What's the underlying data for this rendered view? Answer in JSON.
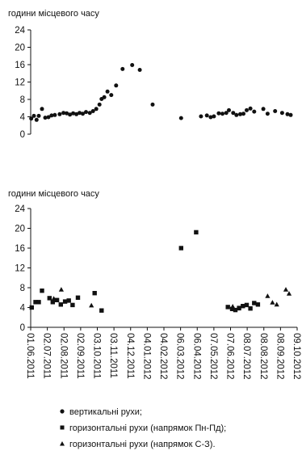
{
  "chart_data": [
    {
      "type": "scatter",
      "ylabel": "години місцевого часу",
      "ylim": [
        0,
        24
      ],
      "yticks": [
        0,
        4,
        8,
        12,
        16,
        20,
        24
      ],
      "grid": false,
      "series": [
        {
          "name": "вертикальні рухи;",
          "marker": "circle",
          "points": [
            [
              "2011-06-02",
              3.6
            ],
            [
              "2011-06-07",
              4.2
            ],
            [
              "2011-06-12",
              3.3
            ],
            [
              "2011-06-16",
              4.2
            ],
            [
              "2011-06-22",
              5.8
            ],
            [
              "2011-06-28",
              3.8
            ],
            [
              "2011-07-04",
              3.9
            ],
            [
              "2011-07-10",
              4.3
            ],
            [
              "2011-07-16",
              4.4
            ],
            [
              "2011-07-25",
              4.6
            ],
            [
              "2011-08-01",
              4.9
            ],
            [
              "2011-08-07",
              4.8
            ],
            [
              "2011-08-13",
              4.5
            ],
            [
              "2011-08-19",
              4.8
            ],
            [
              "2011-08-25",
              4.6
            ],
            [
              "2011-08-31",
              4.9
            ],
            [
              "2011-09-06",
              4.7
            ],
            [
              "2011-09-12",
              5.1
            ],
            [
              "2011-09-19",
              4.9
            ],
            [
              "2011-09-25",
              5.3
            ],
            [
              "2011-10-01",
              5.8
            ],
            [
              "2011-10-07",
              6.8
            ],
            [
              "2011-10-11",
              8.1
            ],
            [
              "2011-10-16",
              8.5
            ],
            [
              "2011-10-22",
              9.8
            ],
            [
              "2011-10-29",
              9.0
            ],
            [
              "2011-11-07",
              11.2
            ],
            [
              "2011-11-19",
              15.0
            ],
            [
              "2011-12-07",
              15.9
            ],
            [
              "2011-12-21",
              14.8
            ],
            [
              "2012-01-14",
              6.8
            ],
            [
              "2012-03-07",
              3.7
            ],
            [
              "2012-04-13",
              4.1
            ],
            [
              "2012-04-24",
              4.3
            ],
            [
              "2012-05-01",
              3.9
            ],
            [
              "2012-05-07",
              4.1
            ],
            [
              "2012-05-16",
              4.8
            ],
            [
              "2012-05-23",
              4.7
            ],
            [
              "2012-05-30",
              4.9
            ],
            [
              "2012-06-04",
              5.5
            ],
            [
              "2012-06-12",
              4.9
            ],
            [
              "2012-06-18",
              4.4
            ],
            [
              "2012-06-25",
              4.6
            ],
            [
              "2012-07-01",
              4.7
            ],
            [
              "2012-07-07",
              5.5
            ],
            [
              "2012-07-14",
              5.9
            ],
            [
              "2012-07-21",
              5.2
            ],
            [
              "2012-08-07",
              5.8
            ],
            [
              "2012-08-15",
              4.7
            ],
            [
              "2012-08-29",
              5.3
            ],
            [
              "2012-09-11",
              4.9
            ],
            [
              "2012-09-21",
              4.6
            ],
            [
              "2012-09-27",
              4.4
            ]
          ]
        }
      ]
    },
    {
      "type": "scatter",
      "ylabel": "години місцевого часу",
      "ylim": [
        0,
        24
      ],
      "yticks": [
        0,
        4,
        8,
        12,
        16,
        20,
        24
      ],
      "grid": false,
      "x_tick_labels": [
        "01.06.2011",
        "02.07.2011",
        "02.08.2011",
        "02.09.2011",
        "03.10.2011",
        "03.11.2011",
        "04.12.2011",
        "04.01.2012",
        "04.02.2012",
        "06.03.2012",
        "06.04.2012",
        "07.05.2012",
        "07.06.2012",
        "08.07.2012",
        "08.08.2012",
        "08.09.2012",
        "09.10.2012"
      ],
      "series": [
        {
          "name": "горизонтальні рухи (напрямок Пн-Пд);",
          "marker": "square",
          "points": [
            [
              "2011-06-03",
              4.0
            ],
            [
              "2011-06-10",
              5.1
            ],
            [
              "2011-06-16",
              5.1
            ],
            [
              "2011-06-22",
              7.4
            ],
            [
              "2011-07-06",
              5.9
            ],
            [
              "2011-07-12",
              5.1
            ],
            [
              "2011-07-20",
              5.5
            ],
            [
              "2011-07-27",
              4.6
            ],
            [
              "2011-08-04",
              5.2
            ],
            [
              "2011-08-11",
              5.4
            ],
            [
              "2011-08-18",
              4.5
            ],
            [
              "2011-08-28",
              6.0
            ],
            [
              "2011-09-28",
              6.9
            ],
            [
              "2011-10-11",
              3.4
            ],
            [
              "2012-03-07",
              16.0
            ],
            [
              "2012-04-04",
              19.2
            ],
            [
              "2012-06-02",
              4.1
            ],
            [
              "2012-06-10",
              3.7
            ],
            [
              "2012-06-16",
              3.5
            ],
            [
              "2012-06-23",
              3.9
            ],
            [
              "2012-06-30",
              4.3
            ],
            [
              "2012-07-07",
              4.5
            ],
            [
              "2012-07-14",
              3.8
            ],
            [
              "2012-07-21",
              4.9
            ],
            [
              "2012-07-28",
              4.6
            ]
          ]
        },
        {
          "name": "горизонтальні рухи (напрямок С-З).",
          "marker": "triangle",
          "points": [
            [
              "2011-07-14",
              5.8
            ],
            [
              "2011-07-28",
              7.6
            ],
            [
              "2011-09-22",
              4.4
            ],
            [
              "2012-06-11",
              4.2
            ],
            [
              "2012-06-22",
              3.8
            ],
            [
              "2012-08-15",
              6.3
            ],
            [
              "2012-08-24",
              5.0
            ],
            [
              "2012-09-01",
              4.6
            ],
            [
              "2012-09-18",
              7.6
            ],
            [
              "2012-09-24",
              6.8
            ]
          ]
        }
      ]
    }
  ]
}
